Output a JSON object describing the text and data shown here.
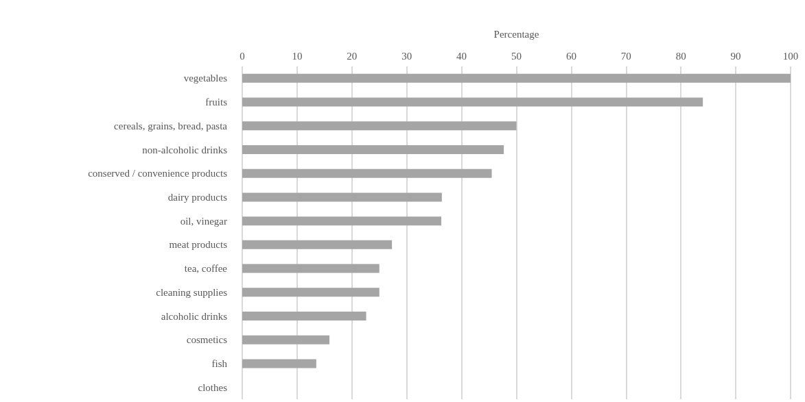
{
  "chart_data": {
    "type": "bar",
    "orientation": "horizontal",
    "xlabel": "Percentage",
    "categories": [
      "vegetables",
      "fruits",
      "cereals, grains, bread, pasta",
      "non-alcoholic drinks",
      "conserved / convenience products",
      "dairy products",
      "oil, vinegar",
      "meat products",
      "tea, coffee",
      "cleaning supplies",
      "alcoholic drinks",
      "cosmetics",
      "fish",
      "clothes"
    ],
    "values": [
      100,
      84,
      50,
      47.7,
      45.5,
      36.4,
      36.3,
      27.3,
      25,
      25,
      22.6,
      15.9,
      13.5,
      0
    ],
    "color": "#a5a5a5",
    "xlim": [
      0,
      100
    ],
    "xticks": [
      0,
      10,
      20,
      30,
      40,
      50,
      60,
      70,
      80,
      90,
      100
    ],
    "grid": "x"
  }
}
